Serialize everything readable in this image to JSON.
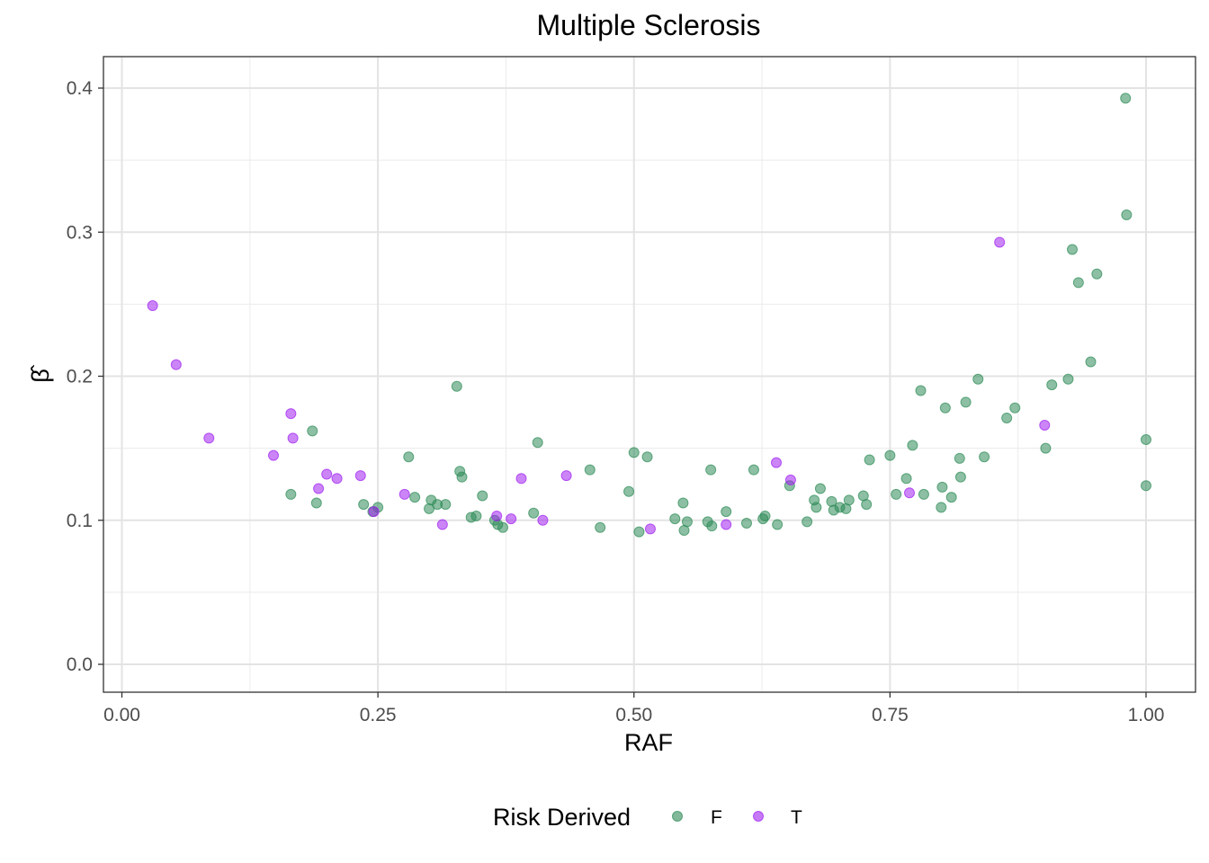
{
  "chart_data": {
    "type": "scatter",
    "title": "Multiple Sclerosis",
    "xlabel": "RAF",
    "ylabel": "β̂",
    "xlim": [
      0,
      1
    ],
    "ylim": [
      0,
      0.4
    ],
    "x_ticks": [
      "0.00",
      "0.25",
      "0.50",
      "0.75",
      "1.00"
    ],
    "y_ticks": [
      "0.0",
      "0.1",
      "0.2",
      "0.3",
      "0.4"
    ],
    "grid": true,
    "legend": {
      "title": "Risk Derived",
      "position": "bottom",
      "entries": [
        {
          "label": "F",
          "color": "#2E8B57"
        },
        {
          "label": "T",
          "color": "#A020F0"
        }
      ]
    },
    "series": [
      {
        "name": "F",
        "color": "#2E8B57",
        "points": [
          [
            0.165,
            0.118
          ],
          [
            0.186,
            0.162
          ],
          [
            0.19,
            0.112
          ],
          [
            0.236,
            0.111
          ],
          [
            0.245,
            0.106
          ],
          [
            0.25,
            0.109
          ],
          [
            0.28,
            0.144
          ],
          [
            0.286,
            0.116
          ],
          [
            0.3,
            0.108
          ],
          [
            0.302,
            0.114
          ],
          [
            0.308,
            0.111
          ],
          [
            0.316,
            0.111
          ],
          [
            0.327,
            0.193
          ],
          [
            0.33,
            0.134
          ],
          [
            0.332,
            0.13
          ],
          [
            0.341,
            0.102
          ],
          [
            0.346,
            0.103
          ],
          [
            0.352,
            0.117
          ],
          [
            0.364,
            0.1
          ],
          [
            0.367,
            0.097
          ],
          [
            0.372,
            0.095
          ],
          [
            0.402,
            0.105
          ],
          [
            0.406,
            0.154
          ],
          [
            0.457,
            0.135
          ],
          [
            0.467,
            0.095
          ],
          [
            0.495,
            0.12
          ],
          [
            0.5,
            0.147
          ],
          [
            0.505,
            0.092
          ],
          [
            0.513,
            0.144
          ],
          [
            0.54,
            0.101
          ],
          [
            0.548,
            0.112
          ],
          [
            0.549,
            0.093
          ],
          [
            0.552,
            0.099
          ],
          [
            0.572,
            0.099
          ],
          [
            0.575,
            0.135
          ],
          [
            0.576,
            0.096
          ],
          [
            0.59,
            0.106
          ],
          [
            0.61,
            0.098
          ],
          [
            0.617,
            0.135
          ],
          [
            0.626,
            0.101
          ],
          [
            0.628,
            0.103
          ],
          [
            0.64,
            0.097
          ],
          [
            0.652,
            0.124
          ],
          [
            0.669,
            0.099
          ],
          [
            0.676,
            0.114
          ],
          [
            0.678,
            0.109
          ],
          [
            0.682,
            0.122
          ],
          [
            0.693,
            0.113
          ],
          [
            0.695,
            0.107
          ],
          [
            0.701,
            0.109
          ],
          [
            0.707,
            0.108
          ],
          [
            0.71,
            0.114
          ],
          [
            0.724,
            0.117
          ],
          [
            0.727,
            0.111
          ],
          [
            0.73,
            0.142
          ],
          [
            0.75,
            0.145
          ],
          [
            0.756,
            0.118
          ],
          [
            0.766,
            0.129
          ],
          [
            0.772,
            0.152
          ],
          [
            0.78,
            0.19
          ],
          [
            0.783,
            0.118
          ],
          [
            0.8,
            0.109
          ],
          [
            0.801,
            0.123
          ],
          [
            0.804,
            0.178
          ],
          [
            0.81,
            0.116
          ],
          [
            0.818,
            0.143
          ],
          [
            0.819,
            0.13
          ],
          [
            0.824,
            0.182
          ],
          [
            0.836,
            0.198
          ],
          [
            0.842,
            0.144
          ],
          [
            0.864,
            0.171
          ],
          [
            0.872,
            0.178
          ],
          [
            0.902,
            0.15
          ],
          [
            0.908,
            0.194
          ],
          [
            0.924,
            0.198
          ],
          [
            0.928,
            0.288
          ],
          [
            0.934,
            0.265
          ],
          [
            0.946,
            0.21
          ],
          [
            0.952,
            0.271
          ],
          [
            0.98,
            0.393
          ],
          [
            0.981,
            0.312
          ],
          [
            1.0,
            0.156
          ],
          [
            1.0,
            0.124
          ]
        ]
      },
      {
        "name": "T",
        "color": "#A020F0",
        "points": [
          [
            0.03,
            0.249
          ],
          [
            0.053,
            0.208
          ],
          [
            0.085,
            0.157
          ],
          [
            0.148,
            0.145
          ],
          [
            0.165,
            0.174
          ],
          [
            0.167,
            0.157
          ],
          [
            0.192,
            0.122
          ],
          [
            0.2,
            0.132
          ],
          [
            0.21,
            0.129
          ],
          [
            0.233,
            0.131
          ],
          [
            0.246,
            0.106
          ],
          [
            0.276,
            0.118
          ],
          [
            0.313,
            0.097
          ],
          [
            0.366,
            0.103
          ],
          [
            0.38,
            0.101
          ],
          [
            0.39,
            0.129
          ],
          [
            0.411,
            0.1
          ],
          [
            0.434,
            0.131
          ],
          [
            0.516,
            0.094
          ],
          [
            0.59,
            0.097
          ],
          [
            0.639,
            0.14
          ],
          [
            0.653,
            0.128
          ],
          [
            0.769,
            0.119
          ],
          [
            0.857,
            0.293
          ],
          [
            0.901,
            0.166
          ]
        ]
      }
    ]
  }
}
